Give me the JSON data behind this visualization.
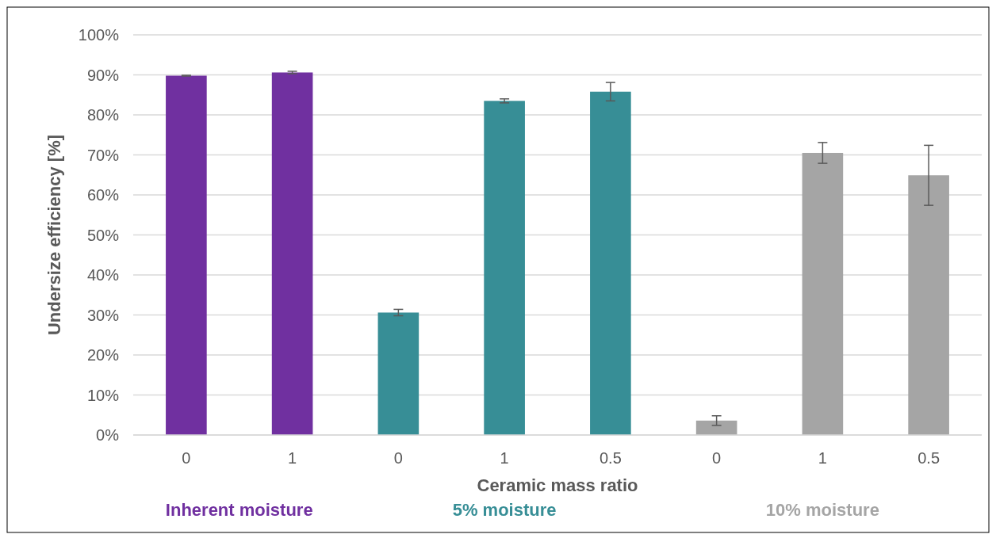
{
  "chart_data": {
    "type": "bar",
    "xlabel": "Ceramic mass ratio",
    "ylabel": "Undersize efficiency [%]",
    "categories": [
      "0",
      "1",
      "0",
      "1",
      "0.5",
      "0",
      "1",
      "0.5"
    ],
    "series": [
      {
        "name": "Inherent moisture",
        "color": "#7030a0",
        "values": [
          89.8,
          90.6,
          null,
          null,
          null,
          null,
          null,
          null
        ],
        "errors": [
          0.1,
          0.3,
          null,
          null,
          null,
          null,
          null,
          null
        ]
      },
      {
        "name": "5% moisture",
        "color": "#378e96",
        "values": [
          null,
          null,
          30.6,
          83.5,
          85.8,
          null,
          null,
          null
        ],
        "errors": [
          null,
          null,
          0.8,
          0.5,
          2.3,
          null,
          null,
          null
        ]
      },
      {
        "name": "10% moisture",
        "color": "#a5a5a5",
        "values": [
          null,
          null,
          null,
          null,
          null,
          3.6,
          70.5,
          64.9
        ],
        "errors": [
          null,
          null,
          null,
          null,
          null,
          1.2,
          2.6,
          7.5
        ]
      }
    ],
    "ylim": [
      0,
      100
    ],
    "yticks": [
      {
        "value": 0,
        "label": "0%"
      },
      {
        "value": 10,
        "label": "10%"
      },
      {
        "value": 20,
        "label": "20%"
      },
      {
        "value": 30,
        "label": "30%"
      },
      {
        "value": 40,
        "label": "40%"
      },
      {
        "value": 50,
        "label": "50%"
      },
      {
        "value": 60,
        "label": "60%"
      },
      {
        "value": 70,
        "label": "70%"
      },
      {
        "value": 80,
        "label": "80%"
      },
      {
        "value": 90,
        "label": "90%"
      },
      {
        "value": 100,
        "label": "100%"
      }
    ],
    "grid": "y",
    "legend": "bottom"
  }
}
